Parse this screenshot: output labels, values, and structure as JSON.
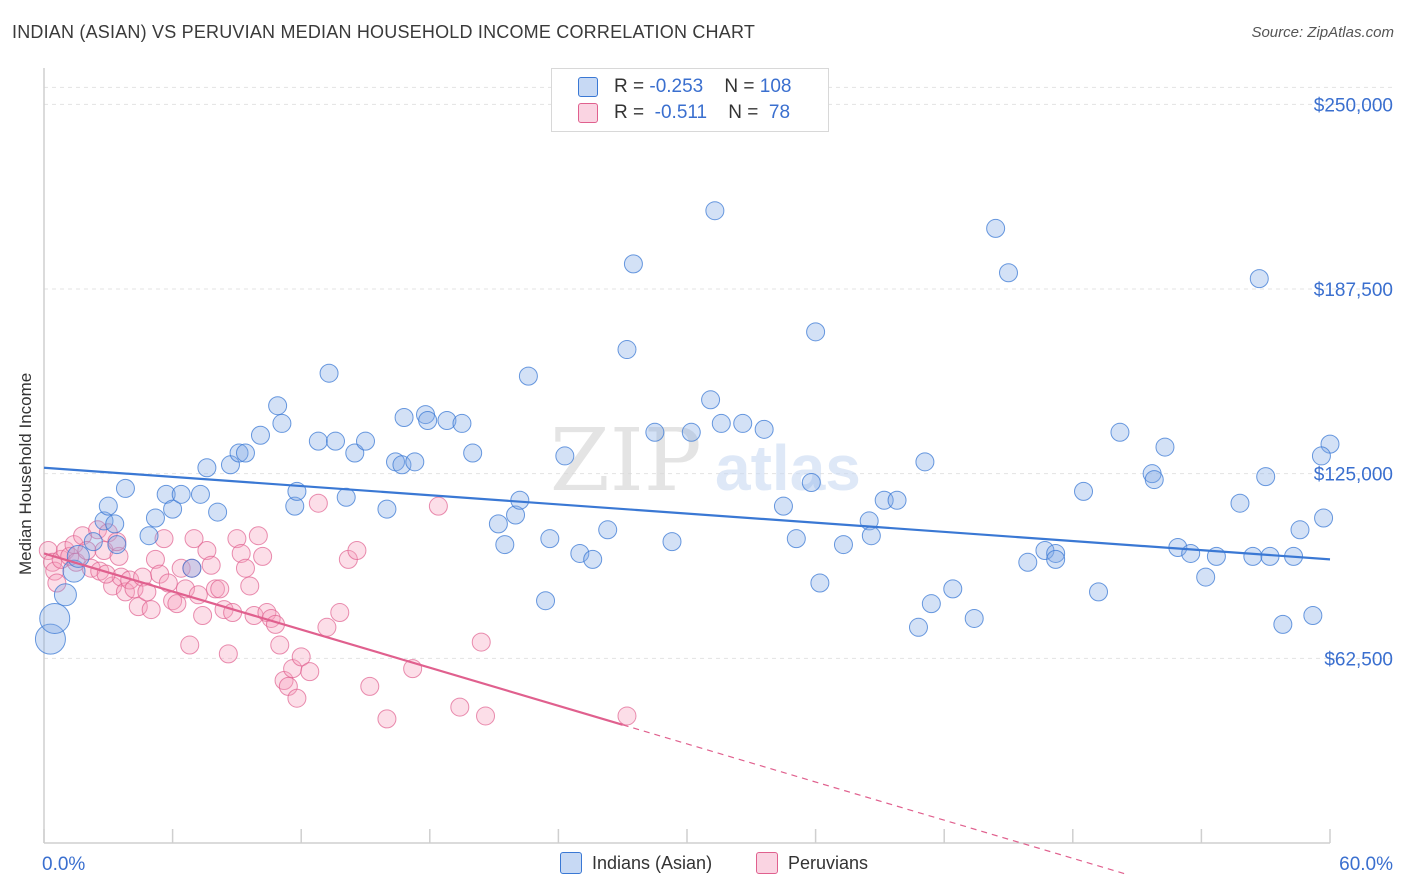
{
  "title": "INDIAN (ASIAN) VS PERUVIAN MEDIAN HOUSEHOLD INCOME CORRELATION CHART",
  "source": "Source: ZipAtlas.com",
  "watermark": {
    "zip": "ZIP",
    "atlas": "atlas"
  },
  "colors": {
    "blue": "#3a78d4",
    "blue_fill": "rgba(130,170,230,0.35)",
    "pink": "#e0608e",
    "pink_fill": "rgba(245,160,190,0.35)",
    "axis_text": "#3a6fcf"
  },
  "legend": {
    "rows": [
      {
        "r_label": "R = ",
        "r_value": "-0.253",
        "n_label": "N = ",
        "n_value": "108"
      },
      {
        "r_label": "R = ",
        "r_value": " -0.511",
        "n_label": "N = ",
        "n_value": " 78"
      }
    ]
  },
  "bottom_legend": {
    "blue": "Indians (Asian)",
    "pink": "Peruvians"
  },
  "chart_data": {
    "type": "scatter",
    "xlabel": "",
    "ylabel": "Median Household Income",
    "xlim": [
      0,
      60
    ],
    "ylim": [
      0,
      265000
    ],
    "x_tick_labels": [
      "0.0%",
      "60.0%"
    ],
    "y_ticks": [
      62500,
      125000,
      187500,
      250000
    ],
    "y_tick_labels": [
      "$62,500",
      "$125,000",
      "$187,500",
      "$250,000"
    ],
    "grid": true,
    "series": [
      {
        "name": "Indians (Asian)",
        "trend": {
          "x": [
            0,
            60
          ],
          "y": [
            127000,
            96000
          ]
        },
        "points": [
          [
            0.3,
            69000
          ],
          [
            0.5,
            76000
          ],
          [
            1.0,
            84000
          ],
          [
            1.4,
            92000
          ],
          [
            1.6,
            97000
          ],
          [
            2.3,
            102000
          ],
          [
            2.8,
            109000
          ],
          [
            3.0,
            114000
          ],
          [
            3.3,
            108000
          ],
          [
            3.4,
            101000
          ],
          [
            3.8,
            120000
          ],
          [
            4.9,
            104000
          ],
          [
            5.2,
            110000
          ],
          [
            5.7,
            118000
          ],
          [
            6.0,
            113000
          ],
          [
            6.4,
            118000
          ],
          [
            6.9,
            93000
          ],
          [
            7.3,
            118000
          ],
          [
            7.6,
            127000
          ],
          [
            8.1,
            112000
          ],
          [
            8.7,
            128000
          ],
          [
            9.1,
            132000
          ],
          [
            9.4,
            132000
          ],
          [
            10.1,
            138000
          ],
          [
            10.9,
            148000
          ],
          [
            11.1,
            142000
          ],
          [
            11.7,
            114000
          ],
          [
            11.8,
            119000
          ],
          [
            12.8,
            136000
          ],
          [
            13.3,
            159000
          ],
          [
            13.6,
            136000
          ],
          [
            14.1,
            117000
          ],
          [
            14.5,
            132000
          ],
          [
            15.0,
            136000
          ],
          [
            16.0,
            113000
          ],
          [
            16.4,
            129000
          ],
          [
            16.7,
            128000
          ],
          [
            16.8,
            144000
          ],
          [
            17.3,
            129000
          ],
          [
            17.8,
            145000
          ],
          [
            17.9,
            143000
          ],
          [
            18.8,
            143000
          ],
          [
            19.5,
            142000
          ],
          [
            20.0,
            132000
          ],
          [
            21.2,
            108000
          ],
          [
            21.5,
            101000
          ],
          [
            22.0,
            111000
          ],
          [
            22.2,
            116000
          ],
          [
            22.6,
            158000
          ],
          [
            23.4,
            82000
          ],
          [
            23.6,
            103000
          ],
          [
            24.3,
            131000
          ],
          [
            25.0,
            98000
          ],
          [
            25.6,
            96000
          ],
          [
            26.3,
            106000
          ],
          [
            27.2,
            167000
          ],
          [
            27.5,
            196000
          ],
          [
            28.5,
            139000
          ],
          [
            29.3,
            102000
          ],
          [
            30.2,
            139000
          ],
          [
            31.1,
            150000
          ],
          [
            31.3,
            214000
          ],
          [
            31.6,
            142000
          ],
          [
            32.6,
            142000
          ],
          [
            33.6,
            140000
          ],
          [
            34.5,
            114000
          ],
          [
            35.1,
            103000
          ],
          [
            35.8,
            122000
          ],
          [
            36.0,
            173000
          ],
          [
            36.2,
            88000
          ],
          [
            37.3,
            101000
          ],
          [
            38.5,
            109000
          ],
          [
            38.6,
            104000
          ],
          [
            39.2,
            116000
          ],
          [
            39.8,
            116000
          ],
          [
            40.8,
            73000
          ],
          [
            41.1,
            129000
          ],
          [
            41.4,
            81000
          ],
          [
            42.4,
            86000
          ],
          [
            43.4,
            76000
          ],
          [
            44.4,
            208000
          ],
          [
            45.0,
            193000
          ],
          [
            45.9,
            95000
          ],
          [
            46.7,
            99000
          ],
          [
            47.2,
            98000
          ],
          [
            47.2,
            96000
          ],
          [
            48.5,
            119000
          ],
          [
            49.2,
            85000
          ],
          [
            50.2,
            139000
          ],
          [
            51.7,
            125000
          ],
          [
            51.8,
            123000
          ],
          [
            52.3,
            134000
          ],
          [
            52.9,
            100000
          ],
          [
            53.5,
            98000
          ],
          [
            54.2,
            90000
          ],
          [
            54.7,
            97000
          ],
          [
            55.8,
            115000
          ],
          [
            56.4,
            97000
          ],
          [
            57.2,
            97000
          ],
          [
            57.8,
            74000
          ],
          [
            58.3,
            97000
          ],
          [
            58.6,
            106000
          ],
          [
            59.2,
            77000
          ],
          [
            59.7,
            110000
          ],
          [
            60.0,
            135000
          ],
          [
            59.6,
            131000
          ],
          [
            57.0,
            124000
          ],
          [
            56.7,
            191000
          ]
        ]
      },
      {
        "name": "Peruvians",
        "trend": {
          "x": [
            0,
            27
          ],
          "y": [
            98000,
            40000
          ]
        },
        "trend_dashed": {
          "x": [
            27,
            60
          ],
          "y": [
            40000,
            -31000
          ]
        },
        "points": [
          [
            0.2,
            99000
          ],
          [
            0.4,
            95000
          ],
          [
            0.5,
            92000
          ],
          [
            0.6,
            88000
          ],
          [
            0.8,
            96000
          ],
          [
            1.0,
            99000
          ],
          [
            1.2,
            97000
          ],
          [
            1.4,
            101000
          ],
          [
            1.5,
            95000
          ],
          [
            1.8,
            104000
          ],
          [
            2.0,
            99000
          ],
          [
            2.2,
            93000
          ],
          [
            2.5,
            106000
          ],
          [
            2.6,
            92000
          ],
          [
            2.8,
            99000
          ],
          [
            3.0,
            105000
          ],
          [
            3.2,
            87000
          ],
          [
            3.5,
            97000
          ],
          [
            3.6,
            90000
          ],
          [
            3.8,
            85000
          ],
          [
            4.0,
            89000
          ],
          [
            4.2,
            86000
          ],
          [
            4.4,
            80000
          ],
          [
            4.6,
            90000
          ],
          [
            4.8,
            85000
          ],
          [
            5.0,
            79000
          ],
          [
            5.2,
            96000
          ],
          [
            5.4,
            91000
          ],
          [
            5.6,
            103000
          ],
          [
            5.8,
            88000
          ],
          [
            6.0,
            82000
          ],
          [
            6.2,
            81000
          ],
          [
            6.4,
            93000
          ],
          [
            6.6,
            86000
          ],
          [
            6.8,
            67000
          ],
          [
            7.0,
            103000
          ],
          [
            7.2,
            84000
          ],
          [
            7.4,
            77000
          ],
          [
            7.6,
            99000
          ],
          [
            7.8,
            94000
          ],
          [
            8.0,
            86000
          ],
          [
            8.2,
            86000
          ],
          [
            8.4,
            79000
          ],
          [
            8.6,
            64000
          ],
          [
            8.8,
            78000
          ],
          [
            9.0,
            103000
          ],
          [
            9.2,
            98000
          ],
          [
            9.4,
            93000
          ],
          [
            9.6,
            87000
          ],
          [
            9.8,
            77000
          ],
          [
            10.0,
            104000
          ],
          [
            10.2,
            97000
          ],
          [
            10.4,
            78000
          ],
          [
            10.6,
            76000
          ],
          [
            10.8,
            74000
          ],
          [
            11.0,
            67000
          ],
          [
            11.2,
            55000
          ],
          [
            11.4,
            53000
          ],
          [
            11.6,
            59000
          ],
          [
            11.8,
            49000
          ],
          [
            12.0,
            63000
          ],
          [
            12.4,
            58000
          ],
          [
            12.8,
            115000
          ],
          [
            13.2,
            73000
          ],
          [
            13.8,
            78000
          ],
          [
            14.2,
            96000
          ],
          [
            14.6,
            99000
          ],
          [
            15.2,
            53000
          ],
          [
            16.0,
            42000
          ],
          [
            17.2,
            59000
          ],
          [
            18.4,
            114000
          ],
          [
            19.4,
            46000
          ],
          [
            20.4,
            68000
          ],
          [
            20.6,
            43000
          ],
          [
            27.2,
            43000
          ],
          [
            3.4,
            102000
          ],
          [
            2.9,
            91000
          ],
          [
            6.9,
            93000
          ]
        ]
      }
    ]
  }
}
